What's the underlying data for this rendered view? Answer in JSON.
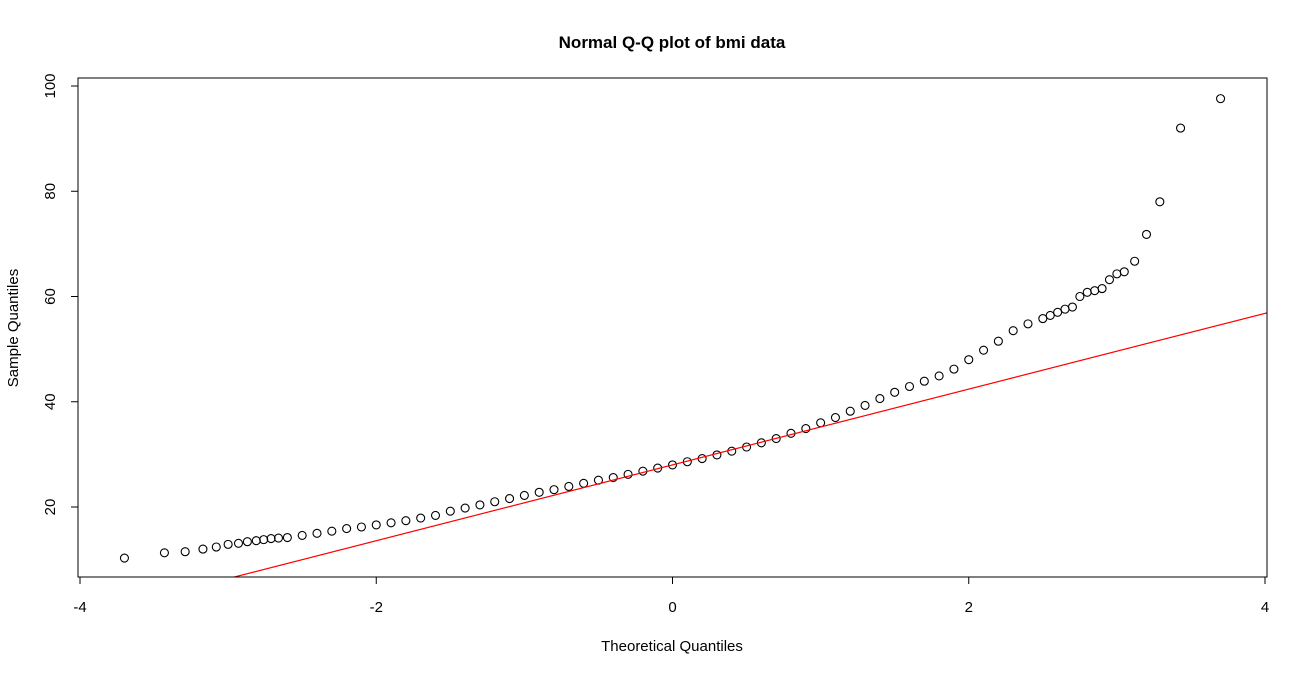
{
  "chart_data": {
    "type": "scatter",
    "title": "Normal Q-Q plot of bmi data",
    "xlabel": "Theoretical Quantiles",
    "ylabel": "Sample Quantiles",
    "xlim": [
      -4,
      4
    ],
    "ylim": [
      7,
      100
    ],
    "x_ticks": [
      -4,
      -2,
      0,
      2,
      4
    ],
    "x_tick_labels": [
      "-4",
      "-2",
      "0",
      "2",
      "4"
    ],
    "y_ticks": [
      20,
      40,
      60,
      80,
      100
    ],
    "y_tick_labels": [
      "20",
      "40",
      "60",
      "80",
      "100"
    ],
    "grid": false,
    "legend": "none",
    "point_color": "#000000",
    "line_color": "#ff0000",
    "reference_line": {
      "intercept": 28.0,
      "slope": 7.2
    },
    "series": [
      {
        "points": {
          "x": [
            -3.7,
            -3.43,
            -3.29,
            -3.17,
            -3.08,
            -3.0,
            -2.93,
            -2.87,
            -2.81,
            -2.76,
            -2.71,
            -2.66,
            -2.6,
            -2.5,
            -2.4,
            -2.3,
            -2.2,
            -2.1,
            -2.0,
            -1.9,
            -1.8,
            -1.7,
            -1.6,
            -1.5,
            -1.4,
            -1.3,
            -1.2,
            -1.1,
            -1.0,
            -0.9,
            -0.8,
            -0.7,
            -0.6,
            -0.5,
            -0.4,
            -0.3,
            -0.2,
            -0.1,
            0.0,
            0.1,
            0.2,
            0.3,
            0.4,
            0.5,
            0.6,
            0.7,
            0.8,
            0.9,
            1.0,
            1.1,
            1.2,
            1.3,
            1.4,
            1.5,
            1.6,
            1.7,
            1.8,
            1.9,
            2.0,
            2.1,
            2.2,
            2.3,
            2.4,
            2.5,
            2.55,
            2.6,
            2.65,
            2.7,
            2.75,
            2.8,
            2.85,
            2.9,
            2.95,
            3.0,
            3.05,
            3.12,
            3.2,
            3.29,
            3.43,
            3.7
          ],
          "y": [
            10.3,
            11.3,
            11.5,
            12.0,
            12.4,
            12.9,
            13.1,
            13.4,
            13.6,
            13.8,
            14.0,
            14.1,
            14.2,
            14.6,
            15.0,
            15.4,
            15.9,
            16.2,
            16.6,
            17.0,
            17.4,
            17.9,
            18.4,
            19.2,
            19.8,
            20.4,
            21.0,
            21.6,
            22.2,
            22.8,
            23.3,
            23.9,
            24.5,
            25.1,
            25.6,
            26.2,
            26.8,
            27.4,
            28.0,
            28.6,
            29.2,
            29.9,
            30.6,
            31.4,
            32.2,
            33.0,
            34.0,
            34.9,
            36.0,
            37.0,
            38.2,
            39.3,
            40.6,
            41.8,
            42.9,
            43.9,
            44.9,
            46.2,
            48.0,
            49.8,
            51.5,
            53.5,
            54.8,
            55.8,
            56.4,
            57.0,
            57.6,
            58.0,
            60.0,
            60.8,
            61.1,
            61.5,
            63.2,
            64.3,
            64.7,
            66.7,
            71.8,
            78.0,
            92.0,
            97.6
          ]
        }
      }
    ]
  }
}
